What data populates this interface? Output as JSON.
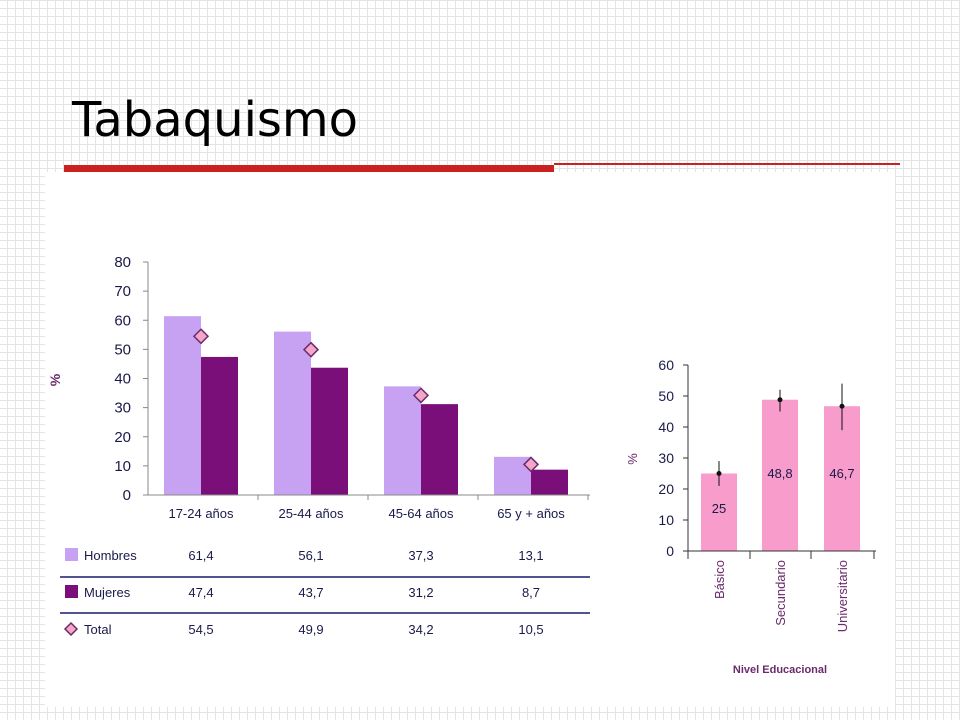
{
  "slide": {
    "title": "Tabaquismo"
  },
  "colors": {
    "hombres": "#c8a2f2",
    "mujeres": "#7a0f7a",
    "total_marker": "#f4a6c8",
    "marker_stroke": "#6b2a6b",
    "education_bar": "#f79ccb",
    "title_rule": "#cc1f1f"
  },
  "chart_data": [
    {
      "type": "bar",
      "ylabel": "%",
      "ylim": [
        0,
        80
      ],
      "yticks": [
        "0",
        "10",
        "20",
        "30",
        "40",
        "50",
        "60",
        "70",
        "80"
      ],
      "categories": [
        "17-24 años",
        "25-44 años",
        "45-64 años",
        "65 y  + años"
      ],
      "series": [
        {
          "name": "Hombres",
          "values": [
            61.4,
            56.1,
            37.3,
            13.1
          ],
          "labels": [
            "61,4",
            "56,1",
            "37,3",
            "13,1"
          ]
        },
        {
          "name": "Mujeres",
          "values": [
            47.4,
            43.7,
            31.2,
            8.7
          ],
          "labels": [
            "47,4",
            "43,7",
            "31,2",
            "8,7"
          ]
        },
        {
          "name": "Total",
          "marker": "diamond",
          "values": [
            54.5,
            49.9,
            34.2,
            10.5
          ],
          "labels": [
            "54,5",
            "49,9",
            "34,2",
            "10,5"
          ]
        }
      ],
      "legend": "table below chart"
    },
    {
      "type": "bar",
      "xlabel": "Nivel Educacional",
      "ylabel": "%",
      "ylim": [
        0,
        60
      ],
      "yticks": [
        "0",
        "10",
        "20",
        "30",
        "40",
        "50",
        "60"
      ],
      "categories": [
        "Básico",
        "Secundario",
        "Universitario"
      ],
      "values": [
        25,
        48.8,
        46.7
      ],
      "labels": [
        "25",
        "48,8",
        "46,7"
      ],
      "error_bars": [
        [
          21,
          29
        ],
        [
          45,
          52
        ],
        [
          39,
          54
        ]
      ]
    }
  ]
}
